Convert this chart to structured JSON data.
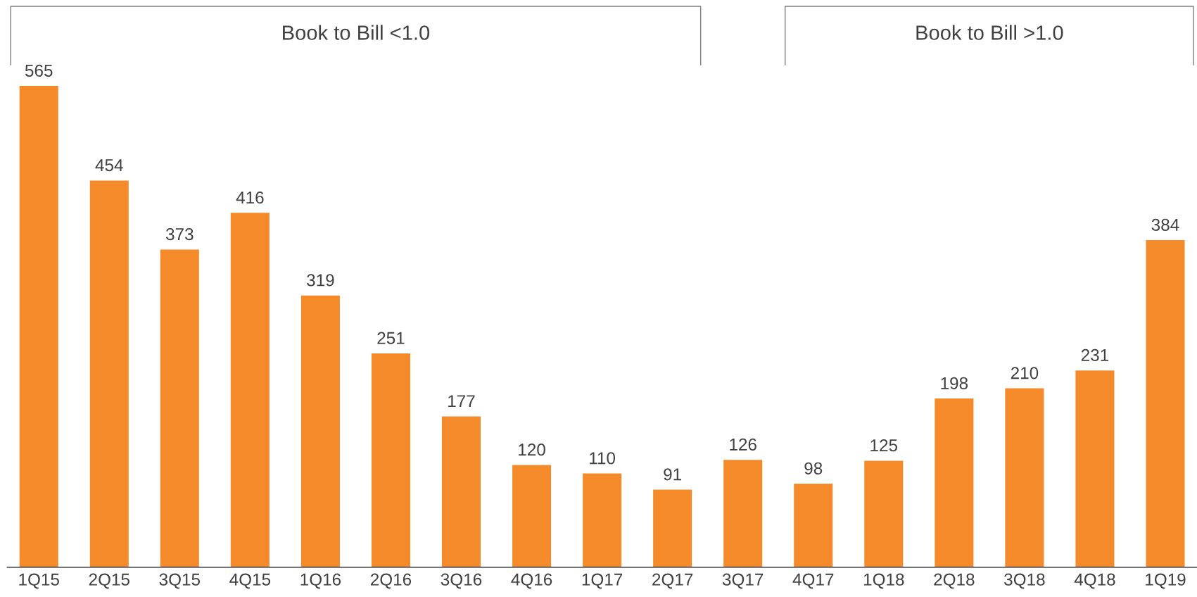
{
  "chart_data": {
    "type": "bar",
    "categories": [
      "1Q15",
      "2Q15",
      "3Q15",
      "4Q15",
      "1Q16",
      "2Q16",
      "3Q16",
      "4Q16",
      "1Q17",
      "2Q17",
      "3Q17",
      "4Q17",
      "1Q18",
      "2Q18",
      "3Q18",
      "4Q18",
      "1Q19"
    ],
    "values": [
      565,
      454,
      373,
      416,
      319,
      251,
      177,
      120,
      110,
      91,
      126,
      98,
      125,
      198,
      210,
      231,
      384
    ],
    "color": "#f58a2a",
    "data_labels": true,
    "grid": false,
    "legend": false,
    "tick_labels": "x",
    "annotations": [
      "Book to Bill <1.0",
      "Book to Bill >1.0"
    ]
  }
}
